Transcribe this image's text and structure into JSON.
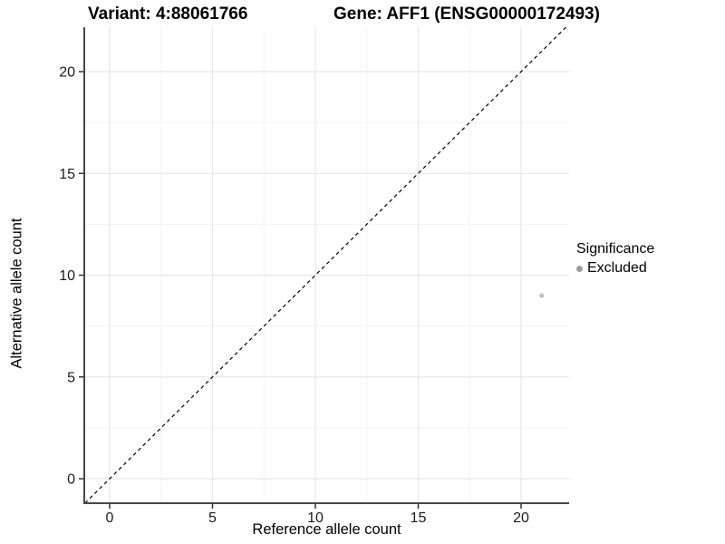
{
  "titles": {
    "variant": "Variant: 4:88061766",
    "gene": "Gene: AFF1 (ENSG00000172493)"
  },
  "axes": {
    "x_label": "Reference allele count",
    "y_label": "Alternative allele count"
  },
  "legend": {
    "title": "Significance",
    "items": [
      {
        "label": "Excluded",
        "color": "#9c9c9c"
      }
    ]
  },
  "colors": {
    "background": "#ffffff",
    "axis_line": "#474747",
    "tick_mark": "#333333",
    "tick_label": "#1a1a1a",
    "grid_major": "#e7e7e7",
    "grid_minor": "#f3f3f3",
    "reference_line": "#000000",
    "point": "#c1c1c1"
  },
  "chart_data": {
    "type": "scatter",
    "title": "Variant: 4:88061766   Gene: AFF1 (ENSG00000172493)",
    "xlabel": "Reference allele count",
    "ylabel": "Alternative allele count",
    "xlim": [
      -1.2,
      22.3
    ],
    "ylim": [
      -1.2,
      22.2
    ],
    "x_ticks": [
      0,
      5,
      10,
      15,
      20
    ],
    "y_ticks": [
      0,
      5,
      10,
      15,
      20
    ],
    "x_minor_ticks": [
      2.5,
      7.5,
      12.5,
      17.5
    ],
    "y_minor_ticks": [
      2.5,
      7.5,
      12.5,
      17.5
    ],
    "grid": true,
    "legend_position": "right",
    "reference_line": {
      "type": "identity",
      "equation": "y = x",
      "style": "dashed",
      "color": "#000000"
    },
    "series": [
      {
        "name": "Excluded",
        "color": "#c1c1c1",
        "points": [
          {
            "x": 21,
            "y": 9
          }
        ]
      }
    ]
  }
}
